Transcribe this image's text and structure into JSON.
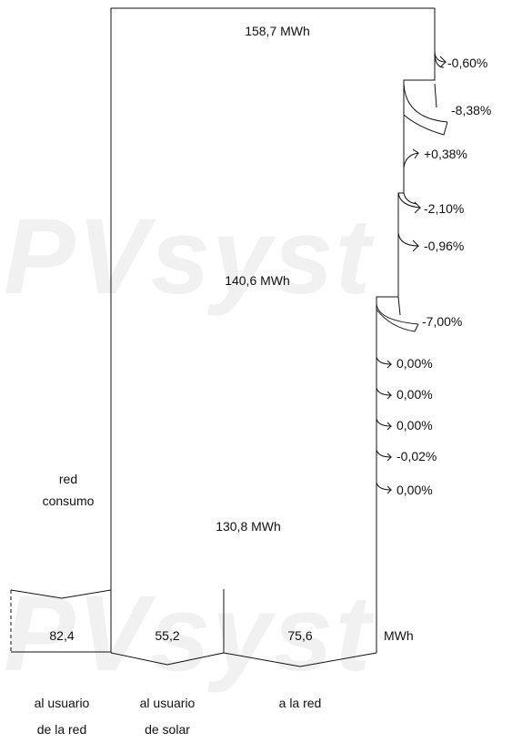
{
  "watermark": {
    "top": "PVsyst",
    "bottom": "PVsyst"
  },
  "energies": {
    "top": "158,7 MWh",
    "middle": "140,6 MWh",
    "bottom": "130,8 MWh"
  },
  "losses": [
    "-0,60%",
    "-8,38%",
    "+0,38%",
    "-2,10%",
    "-0,96%",
    "-7,00%",
    "0,00%",
    "0,00%",
    "0,00%",
    "-0,02%",
    "0,00%"
  ],
  "grid_input_label": [
    "red",
    "consumo"
  ],
  "outputs": {
    "unit": "MWh",
    "values": [
      "82,4",
      "55,2",
      "75,6"
    ],
    "labels": [
      [
        "al usuario",
        "de la red"
      ],
      [
        "al usuario",
        "de solar"
      ],
      [
        "a la red",
        ""
      ]
    ]
  }
}
